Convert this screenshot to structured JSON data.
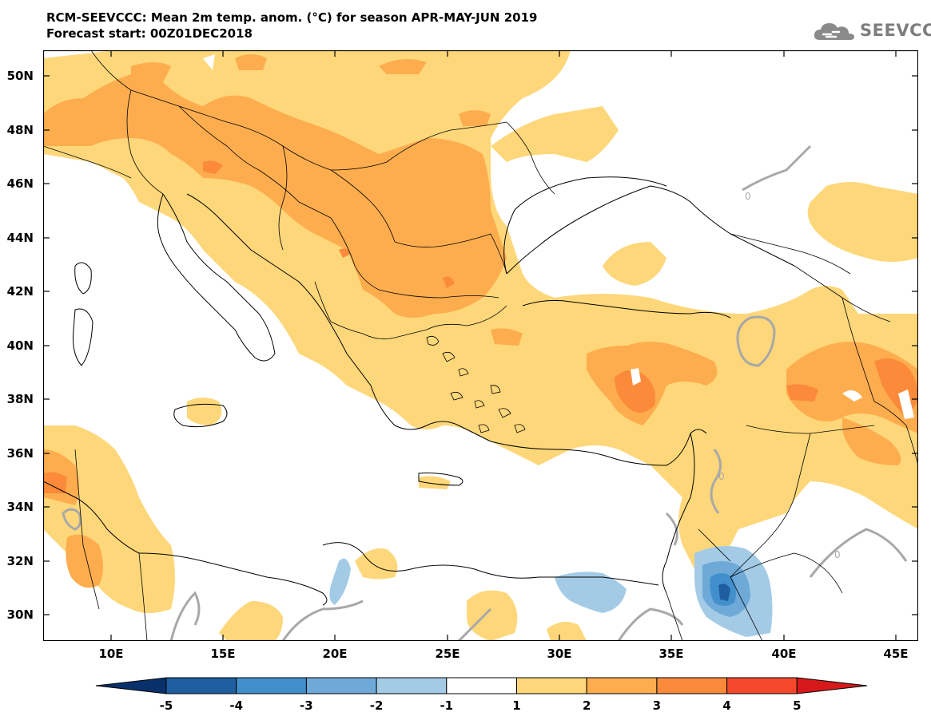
{
  "header": {
    "title_line1": "RCM-SEEVCCC: Mean 2m temp. anom. (°C) for season APR-MAY-JUN 2019",
    "title_line2": "Forecast start: 00Z01DEC2018"
  },
  "logo": {
    "text": "SEEVCCC",
    "icon": "cloud-logo-icon"
  },
  "map": {
    "lat_labels": [
      "50N",
      "48N",
      "46N",
      "44N",
      "42N",
      "40N",
      "38N",
      "36N",
      "34N",
      "32N",
      "30N"
    ],
    "lon_labels": [
      "10E",
      "15E",
      "20E",
      "25E",
      "30E",
      "35E",
      "40E",
      "45E"
    ],
    "contour_label": "0"
  },
  "colorbar": {
    "labels": [
      "-5",
      "-4",
      "-3",
      "-2",
      "-1",
      "1",
      "2",
      "3",
      "4",
      "5"
    ],
    "colors": [
      "#08306b",
      "#1f5fa0",
      "#4190cc",
      "#6fa9d8",
      "#a3cbe6",
      "#ffffff",
      "#fdd77a",
      "#fdad4e",
      "#fb8a3a",
      "#f4482b",
      "#d7191c"
    ]
  },
  "colors": {
    "anom_1_2": "#fdd77a",
    "anom_2_3": "#fdad4e",
    "anom_3_4": "#fb8a3a",
    "anom_neg1_neg2": "#a3cbe6",
    "anom_neg2_neg3": "#6fa9d8",
    "anom_neg3_neg4": "#4190cc",
    "anom_neg4_neg5": "#1f5fa0",
    "contour": "#a8a8a8"
  }
}
